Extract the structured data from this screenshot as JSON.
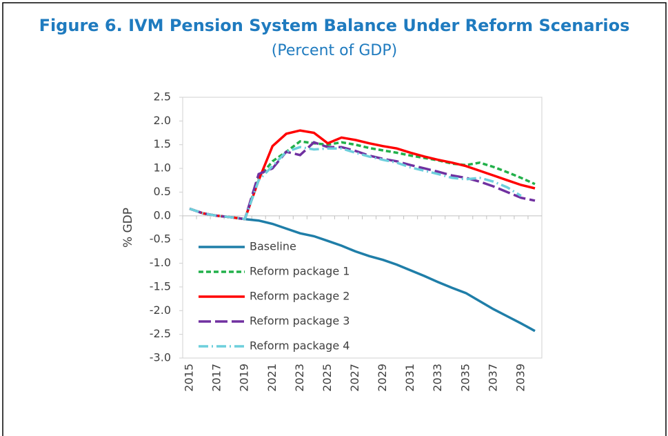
{
  "chart_data": {
    "type": "line",
    "title": "Figure 6. IVM Pension System Balance Under Reform Scenarios",
    "subtitle": "(Percent of GDP)",
    "y_label": "% GDP",
    "categories": [
      "2015",
      null,
      "2017",
      null,
      "2019",
      null,
      "2021",
      null,
      "2023",
      null,
      "2025",
      null,
      "2027",
      null,
      "2029",
      null,
      "2031",
      null,
      "2033",
      null,
      "2035",
      null,
      "2037",
      null,
      "2039",
      null
    ],
    "series": [
      {
        "name": "Baseline",
        "color": "#1f7ea8",
        "dash": "solid",
        "values": [
          0.15,
          0.05,
          0.0,
          -0.03,
          -0.07,
          -0.1,
          -0.17,
          -0.27,
          -0.37,
          -0.43,
          -0.53,
          -0.63,
          -0.75,
          -0.85,
          -0.93,
          -1.03,
          -1.15,
          -1.27,
          -1.4,
          -1.52,
          -1.63,
          -1.8,
          -1.97,
          -2.12,
          -2.27,
          -2.43
        ]
      },
      {
        "name": "Reform package 1",
        "color": "#22b04a",
        "dash": "dashed",
        "values": [
          0.15,
          0.05,
          0.0,
          -0.03,
          -0.07,
          0.8,
          1.15,
          1.35,
          1.57,
          1.53,
          1.5,
          1.55,
          1.5,
          1.43,
          1.38,
          1.33,
          1.27,
          1.22,
          1.17,
          1.1,
          1.07,
          1.12,
          1.03,
          0.92,
          0.8,
          0.67
        ]
      },
      {
        "name": "Reform package 2",
        "color": "#ff0000",
        "dash": "solid",
        "values": [
          0.15,
          0.05,
          0.0,
          -0.03,
          -0.07,
          0.75,
          1.47,
          1.73,
          1.8,
          1.75,
          1.53,
          1.65,
          1.6,
          1.53,
          1.47,
          1.42,
          1.33,
          1.25,
          1.18,
          1.12,
          1.05,
          0.95,
          0.85,
          0.75,
          0.65,
          0.58
        ]
      },
      {
        "name": "Reform package 3",
        "color": "#7030a0",
        "dash": "longdash",
        "values": [
          0.15,
          0.05,
          0.0,
          -0.03,
          -0.07,
          0.88,
          1.0,
          1.35,
          1.28,
          1.55,
          1.45,
          1.45,
          1.37,
          1.27,
          1.2,
          1.15,
          1.07,
          1.0,
          0.93,
          0.85,
          0.8,
          0.72,
          0.62,
          0.5,
          0.38,
          0.32
        ]
      },
      {
        "name": "Reform package 4",
        "color": "#6dcfdc",
        "dash": "dashdot",
        "values": [
          0.15,
          0.05,
          0.0,
          -0.03,
          -0.07,
          0.75,
          1.05,
          1.35,
          1.45,
          1.4,
          1.42,
          1.42,
          1.33,
          1.25,
          1.18,
          1.12,
          1.02,
          0.95,
          0.88,
          0.8,
          0.77,
          0.8,
          0.72,
          0.6,
          0.42,
          null
        ]
      }
    ],
    "ylim": [
      -3.0,
      2.5
    ],
    "yticks": [
      2.5,
      {
        "value": 2.0,
        "label": "2.0"
      },
      1.5,
      {
        "value": 1.0,
        "label": "1.0"
      },
      0.5,
      {
        "value": 0.0,
        "label": "0.0"
      },
      -0.5,
      {
        "value": -1.0,
        "label": "-1.0"
      },
      -1.5,
      {
        "value": -2.0,
        "label": "-2.0"
      },
      -2.5,
      {
        "value": -3.0,
        "label": "-3.0"
      }
    ],
    "grid": false,
    "legend": "lower left"
  }
}
